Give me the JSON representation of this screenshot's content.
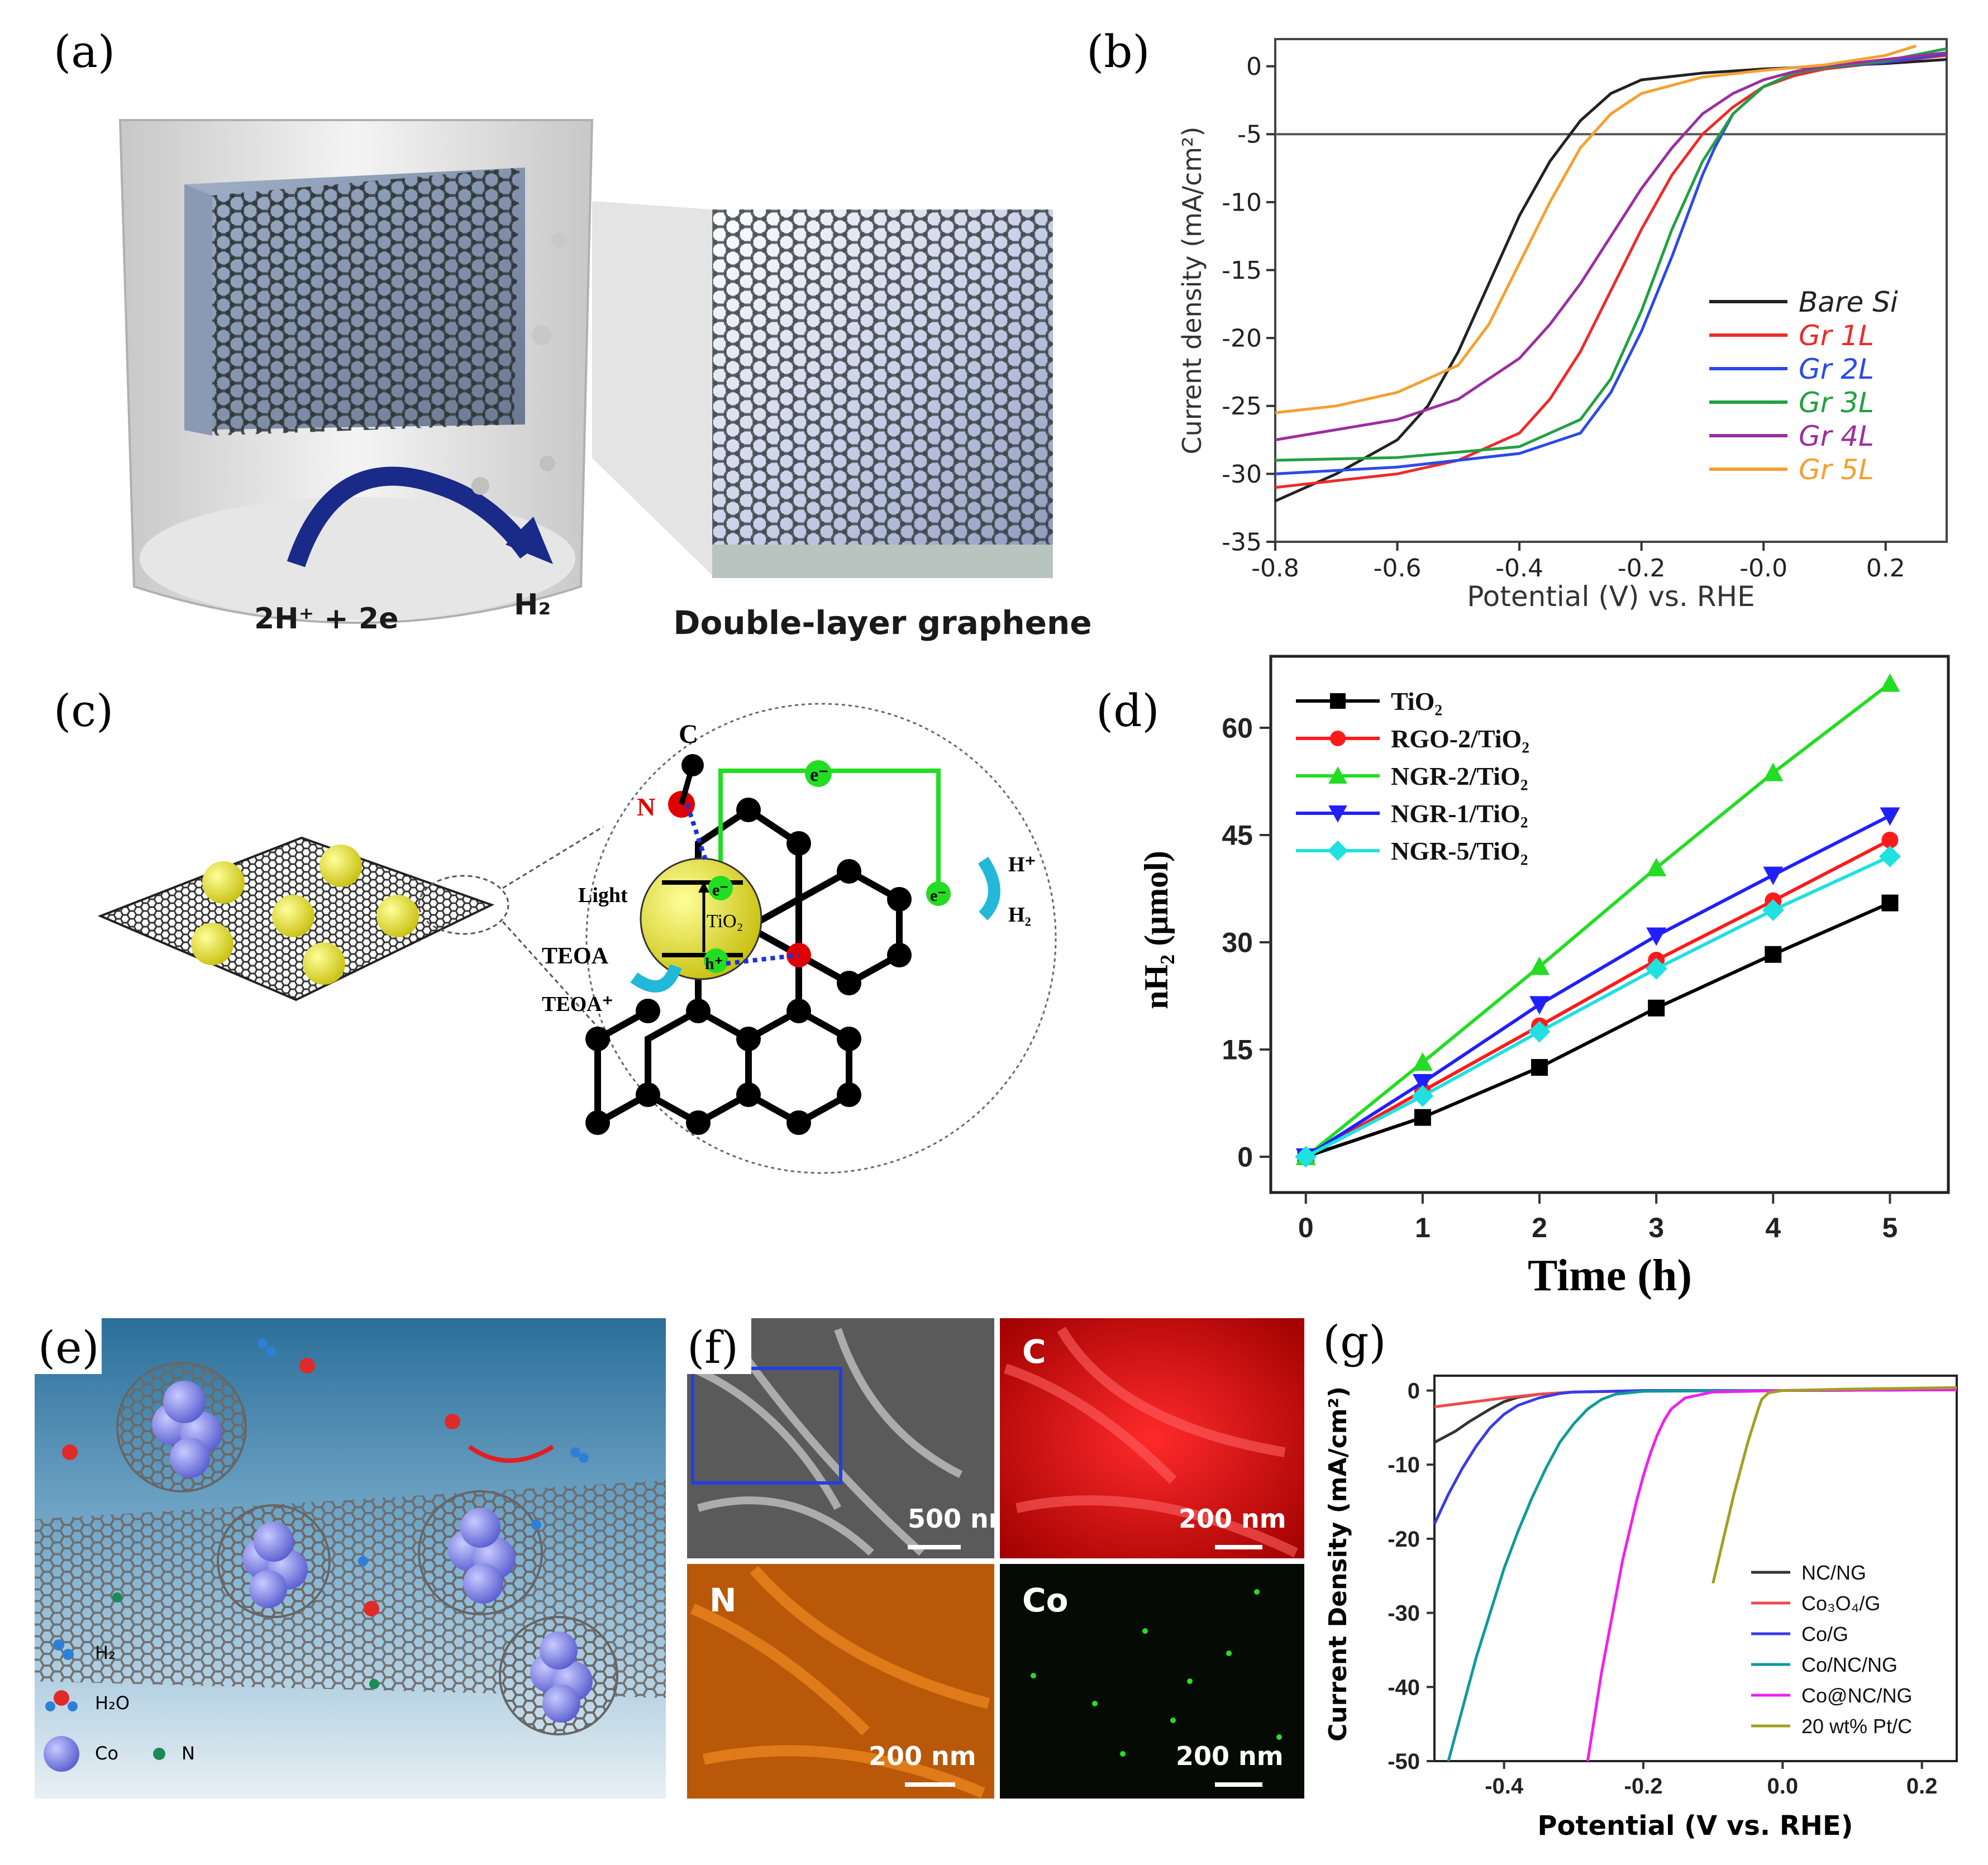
{
  "panels": {
    "a": {
      "letter": "(a)",
      "reaction_left": "2H⁺ + 2e",
      "reaction_right": "H₂",
      "caption": "Double-layer graphene"
    },
    "c": {
      "letter": "(c)",
      "labels": {
        "c_atom": "C",
        "n_atom": "N",
        "e_top": "e⁻",
        "e_mid": "e⁻",
        "e_right": "e⁻",
        "h_hole": "h⁺",
        "light": "Light",
        "tio2": "TiO₂",
        "h_plus": "H⁺",
        "h2": "H₂",
        "teoa": "TEOA",
        "teoa_plus": "TEOA⁺"
      }
    },
    "e": {
      "letter": "(e)",
      "legend": {
        "h2": "H₂",
        "h2o": "H₂O",
        "co": "Co",
        "n": "N"
      },
      "colors": {
        "co": "#7b7fe0",
        "n": "#1a8a5a",
        "h": "#2f7fd6",
        "o": "#e02a2a"
      }
    },
    "f": {
      "letter": "(f)",
      "tiles": [
        {
          "element": "",
          "scale": "500 nm",
          "color": "#9a9a9a"
        },
        {
          "element": "C",
          "scale": "200 nm",
          "color": "#e21212"
        },
        {
          "element": "N",
          "scale": "200 nm",
          "color": "#e07010"
        },
        {
          "element": "Co",
          "scale": "200 nm",
          "color": "#22e022"
        }
      ]
    }
  },
  "chart_data": [
    {
      "panel": "(b)",
      "type": "line",
      "xlabel": "Potential (V) vs. RHE",
      "ylabel": "Current density (mA/cm²)",
      "xlim": [
        -0.8,
        0.3
      ],
      "ylim": [
        -35,
        2
      ],
      "xticks": [
        "-0.8",
        "-0.6",
        "-0.4",
        "-0.2",
        "-0.0",
        "0.2"
      ],
      "yticks": [
        "0",
        "-5",
        "-10",
        "-15",
        "-20",
        "-25",
        "-30",
        "-35"
      ],
      "reference_line_y": -5,
      "legend_position": "bottom-right",
      "series": [
        {
          "name": "Bare Si",
          "color": "#222222",
          "x": [
            -0.8,
            -0.7,
            -0.6,
            -0.55,
            -0.5,
            -0.45,
            -0.4,
            -0.35,
            -0.3,
            -0.25,
            -0.2,
            -0.1,
            0.0,
            0.1,
            0.2,
            0.3
          ],
          "y": [
            -32,
            -30,
            -27.5,
            -25,
            -21,
            -16,
            -11,
            -7,
            -4,
            -2,
            -1,
            -0.5,
            -0.2,
            0,
            0.2,
            0.5
          ]
        },
        {
          "name": "Gr 1L",
          "color": "#ee2a2a",
          "x": [
            -0.8,
            -0.6,
            -0.5,
            -0.4,
            -0.35,
            -0.3,
            -0.25,
            -0.2,
            -0.15,
            -0.1,
            -0.05,
            0.0,
            0.05,
            0.1,
            0.2,
            0.3
          ],
          "y": [
            -31,
            -30,
            -29,
            -27,
            -24.5,
            -21,
            -16.5,
            -12,
            -8,
            -5,
            -3,
            -1.5,
            -0.7,
            -0.2,
            0.3,
            0.8
          ]
        },
        {
          "name": "Gr 2L",
          "color": "#2a4ae8",
          "x": [
            -0.8,
            -0.6,
            -0.4,
            -0.3,
            -0.25,
            -0.2,
            -0.15,
            -0.1,
            -0.08,
            -0.05,
            0.0,
            0.05,
            0.1,
            0.2,
            0.3
          ],
          "y": [
            -30,
            -29.5,
            -28.5,
            -27,
            -24,
            -19.5,
            -14,
            -8,
            -6,
            -3.5,
            -1.5,
            -0.5,
            -0.1,
            0.3,
            0.9
          ]
        },
        {
          "name": "Gr 3L",
          "color": "#22a040",
          "x": [
            -0.8,
            -0.6,
            -0.4,
            -0.3,
            -0.25,
            -0.2,
            -0.15,
            -0.12,
            -0.1,
            -0.05,
            0.0,
            0.05,
            0.1,
            0.2,
            0.3
          ],
          "y": [
            -29,
            -28.8,
            -28,
            -26,
            -23,
            -18,
            -12,
            -9,
            -7,
            -3.5,
            -1.5,
            -0.5,
            -0.1,
            0.4,
            1.3
          ]
        },
        {
          "name": "Gr 4L",
          "color": "#9b2fa0",
          "x": [
            -0.8,
            -0.6,
            -0.5,
            -0.4,
            -0.35,
            -0.3,
            -0.25,
            -0.2,
            -0.15,
            -0.1,
            -0.05,
            0.0,
            0.05,
            0.1,
            0.2,
            0.3
          ],
          "y": [
            -27.5,
            -26,
            -24.5,
            -21.5,
            -19,
            -16,
            -12.5,
            -9,
            -6,
            -3.5,
            -2,
            -1,
            -0.4,
            0,
            0.5,
            1.0
          ]
        },
        {
          "name": "Gr 5L",
          "color": "#f5a030",
          "x": [
            -0.8,
            -0.7,
            -0.6,
            -0.5,
            -0.45,
            -0.4,
            -0.35,
            -0.3,
            -0.25,
            -0.2,
            -0.1,
            0.0,
            0.1,
            0.2,
            0.25
          ],
          "y": [
            -25.5,
            -25,
            -24,
            -22,
            -19,
            -14.5,
            -10,
            -6,
            -3.5,
            -2,
            -0.8,
            -0.3,
            0.1,
            0.8,
            1.5
          ]
        }
      ]
    },
    {
      "panel": "(d)",
      "type": "line",
      "xlabel": "Time (h)",
      "ylabel": "nH₂ (μmol)",
      "xlim": [
        -0.3,
        5.5
      ],
      "ylim": [
        -5,
        70
      ],
      "xticks": [
        "0",
        "1",
        "2",
        "3",
        "4",
        "5"
      ],
      "yticks": [
        "0",
        "15",
        "30",
        "45",
        "60"
      ],
      "legend_position": "top-left",
      "x": [
        0,
        1,
        2,
        3,
        4,
        5
      ],
      "series": [
        {
          "name": "TiO₂",
          "color": "#000000",
          "marker": "square",
          "values": [
            0,
            5.5,
            12.5,
            20.8,
            28.3,
            35.5
          ]
        },
        {
          "name": "RGO-2/TiO₂",
          "color": "#ff1a1a",
          "marker": "circle",
          "values": [
            0,
            9.2,
            18.3,
            27.5,
            35.8,
            44.3
          ]
        },
        {
          "name": "NGR-2/TiO₂",
          "color": "#22dd22",
          "marker": "triangle-up",
          "values": [
            0,
            13.2,
            26.6,
            40.4,
            53.7,
            66.2
          ]
        },
        {
          "name": "NGR-1/TiO₂",
          "color": "#2020ff",
          "marker": "triangle-down",
          "values": [
            0,
            10.4,
            21.3,
            30.9,
            39.4,
            47.7
          ]
        },
        {
          "name": "NGR-5/TiO₂",
          "color": "#20e0e0",
          "marker": "diamond",
          "values": [
            0,
            8.5,
            17.5,
            26.3,
            34.5,
            42
          ]
        }
      ]
    },
    {
      "panel": "(g)",
      "type": "line",
      "xlabel": "Potential (V vs. RHE)",
      "ylabel": "Current Density (mA/cm²)",
      "xlim": [
        -0.5,
        0.25
      ],
      "ylim": [
        -50,
        2
      ],
      "xticks": [
        "-0.4",
        "-0.2",
        "0.0",
        "0.2"
      ],
      "yticks": [
        "0",
        "-10",
        "-20",
        "-30",
        "-40",
        "-50"
      ],
      "legend_position": "bottom-right",
      "series": [
        {
          "name": "NC/NG",
          "color": "#333333",
          "x": [
            -0.5,
            -0.47,
            -0.45,
            -0.42,
            -0.4,
            -0.38,
            -0.35,
            -0.3,
            -0.2,
            0.0,
            0.25
          ],
          "y": [
            -7,
            -5.5,
            -4.2,
            -2.5,
            -1.5,
            -0.9,
            -0.5,
            -0.2,
            -0.05,
            0,
            0.2
          ]
        },
        {
          "name": "Co₃O₄/G",
          "color": "#ee4a4a",
          "x": [
            -0.5,
            -0.45,
            -0.4,
            -0.35,
            -0.3,
            -0.2,
            0.0,
            0.25
          ],
          "y": [
            -2.2,
            -1.6,
            -1.0,
            -0.5,
            -0.2,
            -0.05,
            0,
            0.1
          ]
        },
        {
          "name": "Co/G",
          "color": "#3a3ae8",
          "x": [
            -0.5,
            -0.48,
            -0.46,
            -0.44,
            -0.42,
            -0.4,
            -0.38,
            -0.35,
            -0.32,
            -0.3,
            -0.2,
            0.0,
            0.25
          ],
          "y": [
            -18,
            -14,
            -10.5,
            -7.5,
            -5,
            -3.2,
            -2,
            -1,
            -0.4,
            -0.2,
            0,
            0,
            0.1
          ]
        },
        {
          "name": "Co/NC/NG",
          "color": "#0f9a9a",
          "x": [
            -0.48,
            -0.46,
            -0.44,
            -0.42,
            -0.4,
            -0.38,
            -0.36,
            -0.34,
            -0.32,
            -0.3,
            -0.28,
            -0.26,
            -0.24,
            -0.2,
            0.0,
            0.25
          ],
          "y": [
            -50,
            -43,
            -36,
            -30,
            -24,
            -19,
            -14.5,
            -10.5,
            -7,
            -4.5,
            -2.5,
            -1.2,
            -0.5,
            -0.1,
            0,
            0.1
          ]
        },
        {
          "name": "Co@NC/NG",
          "color": "#f020f0",
          "x": [
            -0.28,
            -0.27,
            -0.26,
            -0.25,
            -0.24,
            -0.23,
            -0.22,
            -0.21,
            -0.2,
            -0.19,
            -0.18,
            -0.17,
            -0.16,
            -0.14,
            -0.1,
            0.0,
            0.25
          ],
          "y": [
            -50,
            -44,
            -38,
            -33,
            -28,
            -23,
            -19,
            -15,
            -11.5,
            -8.5,
            -6,
            -4,
            -2.5,
            -1,
            -0.2,
            0,
            0.1
          ]
        },
        {
          "name": "20 wt% Pt/C",
          "color": "#a0a020",
          "x": [
            -0.1,
            -0.09,
            -0.08,
            -0.07,
            -0.06,
            -0.05,
            -0.04,
            -0.035,
            -0.03,
            -0.02,
            0.0,
            0.1,
            0.25
          ],
          "y": [
            -26,
            -22,
            -18,
            -14,
            -10.5,
            -7,
            -4,
            -2.5,
            -1.2,
            -0.3,
            0,
            0.2,
            0.4
          ]
        }
      ]
    }
  ]
}
